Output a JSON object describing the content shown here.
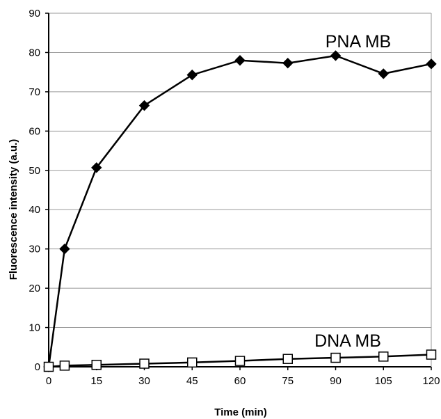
{
  "chart_data": {
    "type": "line",
    "title": "",
    "xlabel": "Time (min)",
    "ylabel": "Fluorescence intensity (a.u.)",
    "xlim": [
      0,
      120
    ],
    "ylim": [
      0,
      90
    ],
    "xticks": [
      0,
      15,
      30,
      45,
      60,
      75,
      90,
      105,
      120
    ],
    "yticks": [
      0,
      10,
      20,
      30,
      40,
      50,
      60,
      70,
      80,
      90
    ],
    "grid": "horizontal",
    "legend": "none",
    "series": [
      {
        "name": "PNA MB",
        "marker": "diamond-filled",
        "color": "#000000",
        "points": [
          [
            0,
            0
          ],
          [
            5,
            30
          ],
          [
            15,
            50.7
          ],
          [
            30,
            66.5
          ],
          [
            45,
            74.3
          ],
          [
            60,
            78
          ],
          [
            75,
            77.3
          ],
          [
            90,
            79.2
          ],
          [
            105,
            74.6
          ],
          [
            120,
            77.1
          ]
        ]
      },
      {
        "name": "DNA MB",
        "marker": "square-open",
        "color": "#000000",
        "points": [
          [
            0,
            0
          ],
          [
            5,
            0.3
          ],
          [
            15,
            0.5
          ],
          [
            30,
            0.8
          ],
          [
            45,
            1.1
          ],
          [
            60,
            1.5
          ],
          [
            75,
            2
          ],
          [
            90,
            2.3
          ],
          [
            105,
            2.6
          ],
          [
            120,
            3.1
          ]
        ]
      }
    ]
  }
}
